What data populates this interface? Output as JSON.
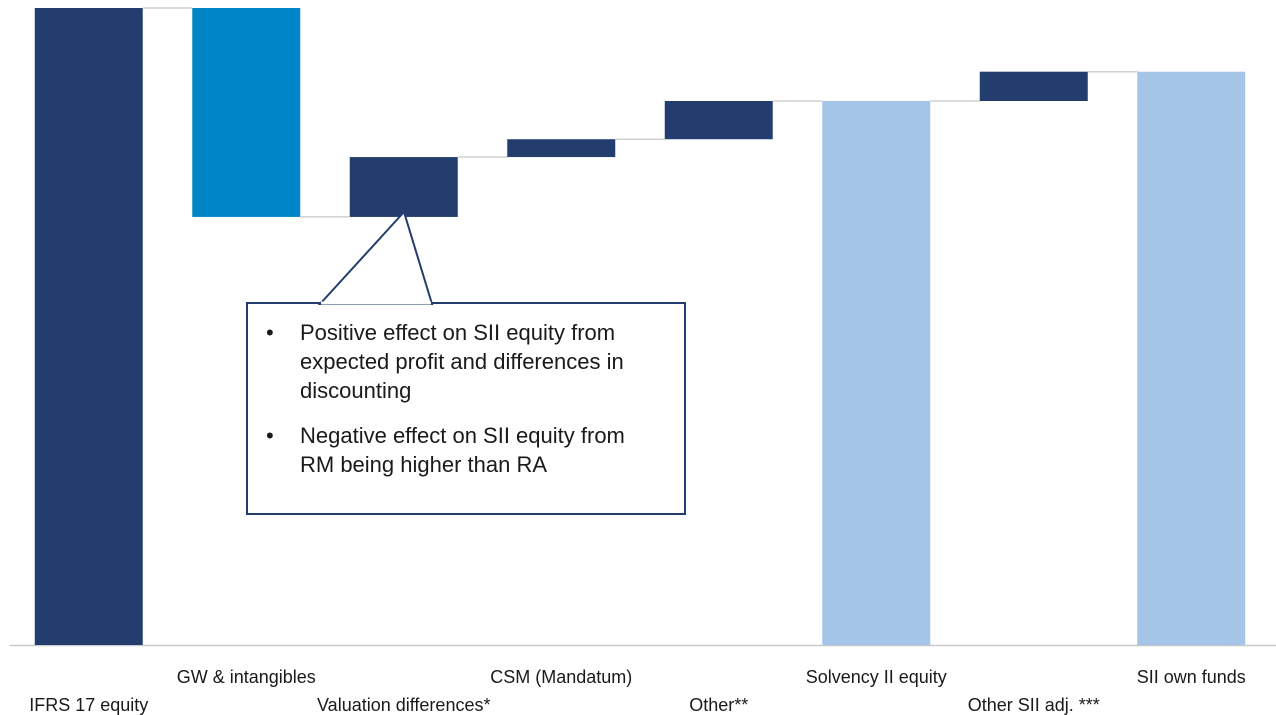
{
  "chart_data": {
    "type": "waterfall",
    "categories": [
      "IFRS 17 equity",
      "GW & intangibles",
      "Valuation differences*",
      "CSM (Mandatum)",
      "Other**",
      "Solvency II equity",
      "Other SII adj. ***",
      "SII own funds"
    ],
    "values": [
      100,
      -32.8,
      9.4,
      2.8,
      6.0,
      85.4,
      4.6,
      90.0
    ],
    "totals": [
      true,
      false,
      false,
      false,
      false,
      true,
      false,
      true
    ],
    "colors": [
      "#233e6e",
      "#0085c7",
      "#233e6e",
      "#233e6e",
      "#233e6e",
      "#a4c4e8",
      "#233e6e",
      "#a4c4e8"
    ],
    "ylim": [
      0,
      100
    ],
    "annotation": [
      "Positive effect on SII equity from expected profit and differences in discounting",
      "Negative effect on SII equity from RM being higher than RA"
    ]
  }
}
